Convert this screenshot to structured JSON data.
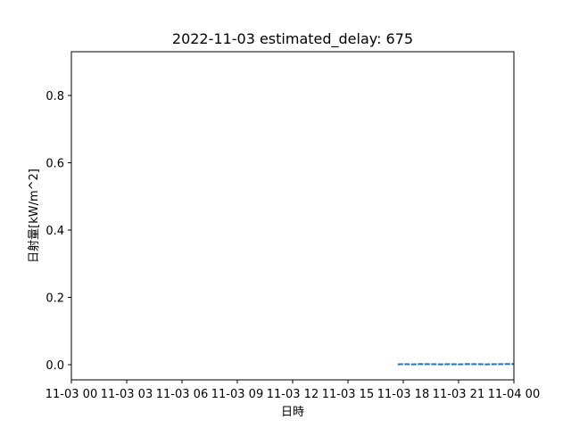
{
  "chart_data": {
    "type": "line",
    "title": "2022-11-03 estimated_delay: 675",
    "xlabel": "日時",
    "ylabel": "日射量[kW/m^2]",
    "x_ticks": [
      {
        "hours": 0,
        "label": "11-03 00"
      },
      {
        "hours": 3,
        "label": "11-03 03"
      },
      {
        "hours": 6,
        "label": "11-03 06"
      },
      {
        "hours": 9,
        "label": "11-03 09"
      },
      {
        "hours": 12,
        "label": "11-03 12"
      },
      {
        "hours": 15,
        "label": "11-03 15"
      },
      {
        "hours": 18,
        "label": "11-03 18"
      },
      {
        "hours": 21,
        "label": "11-03 21"
      },
      {
        "hours": 24,
        "label": "11-04 00"
      }
    ],
    "xlim_hours": [
      0,
      24
    ],
    "y_ticks": [
      0.0,
      0.2,
      0.4,
      0.6,
      0.8
    ],
    "y_tick_labels": [
      "0.0",
      "0.2",
      "0.4",
      "0.6",
      "0.8"
    ],
    "ylim": [
      -0.045,
      0.93
    ],
    "grid": false,
    "series": [
      {
        "color": "#1f77b4",
        "points": [
          [
            17.7,
            0.001
          ],
          [
            18.0,
            0.0015
          ],
          [
            18.5,
            0.001
          ],
          [
            19.0,
            0.002
          ],
          [
            19.5,
            0.0015
          ],
          [
            20.0,
            0.001
          ],
          [
            20.5,
            0.0015
          ],
          [
            21.0,
            0.001
          ],
          [
            21.5,
            0.002
          ],
          [
            22.0,
            0.0015
          ],
          [
            22.5,
            0.001
          ],
          [
            23.0,
            0.0015
          ],
          [
            23.5,
            0.002
          ],
          [
            24.0,
            0.002
          ]
        ]
      }
    ]
  }
}
